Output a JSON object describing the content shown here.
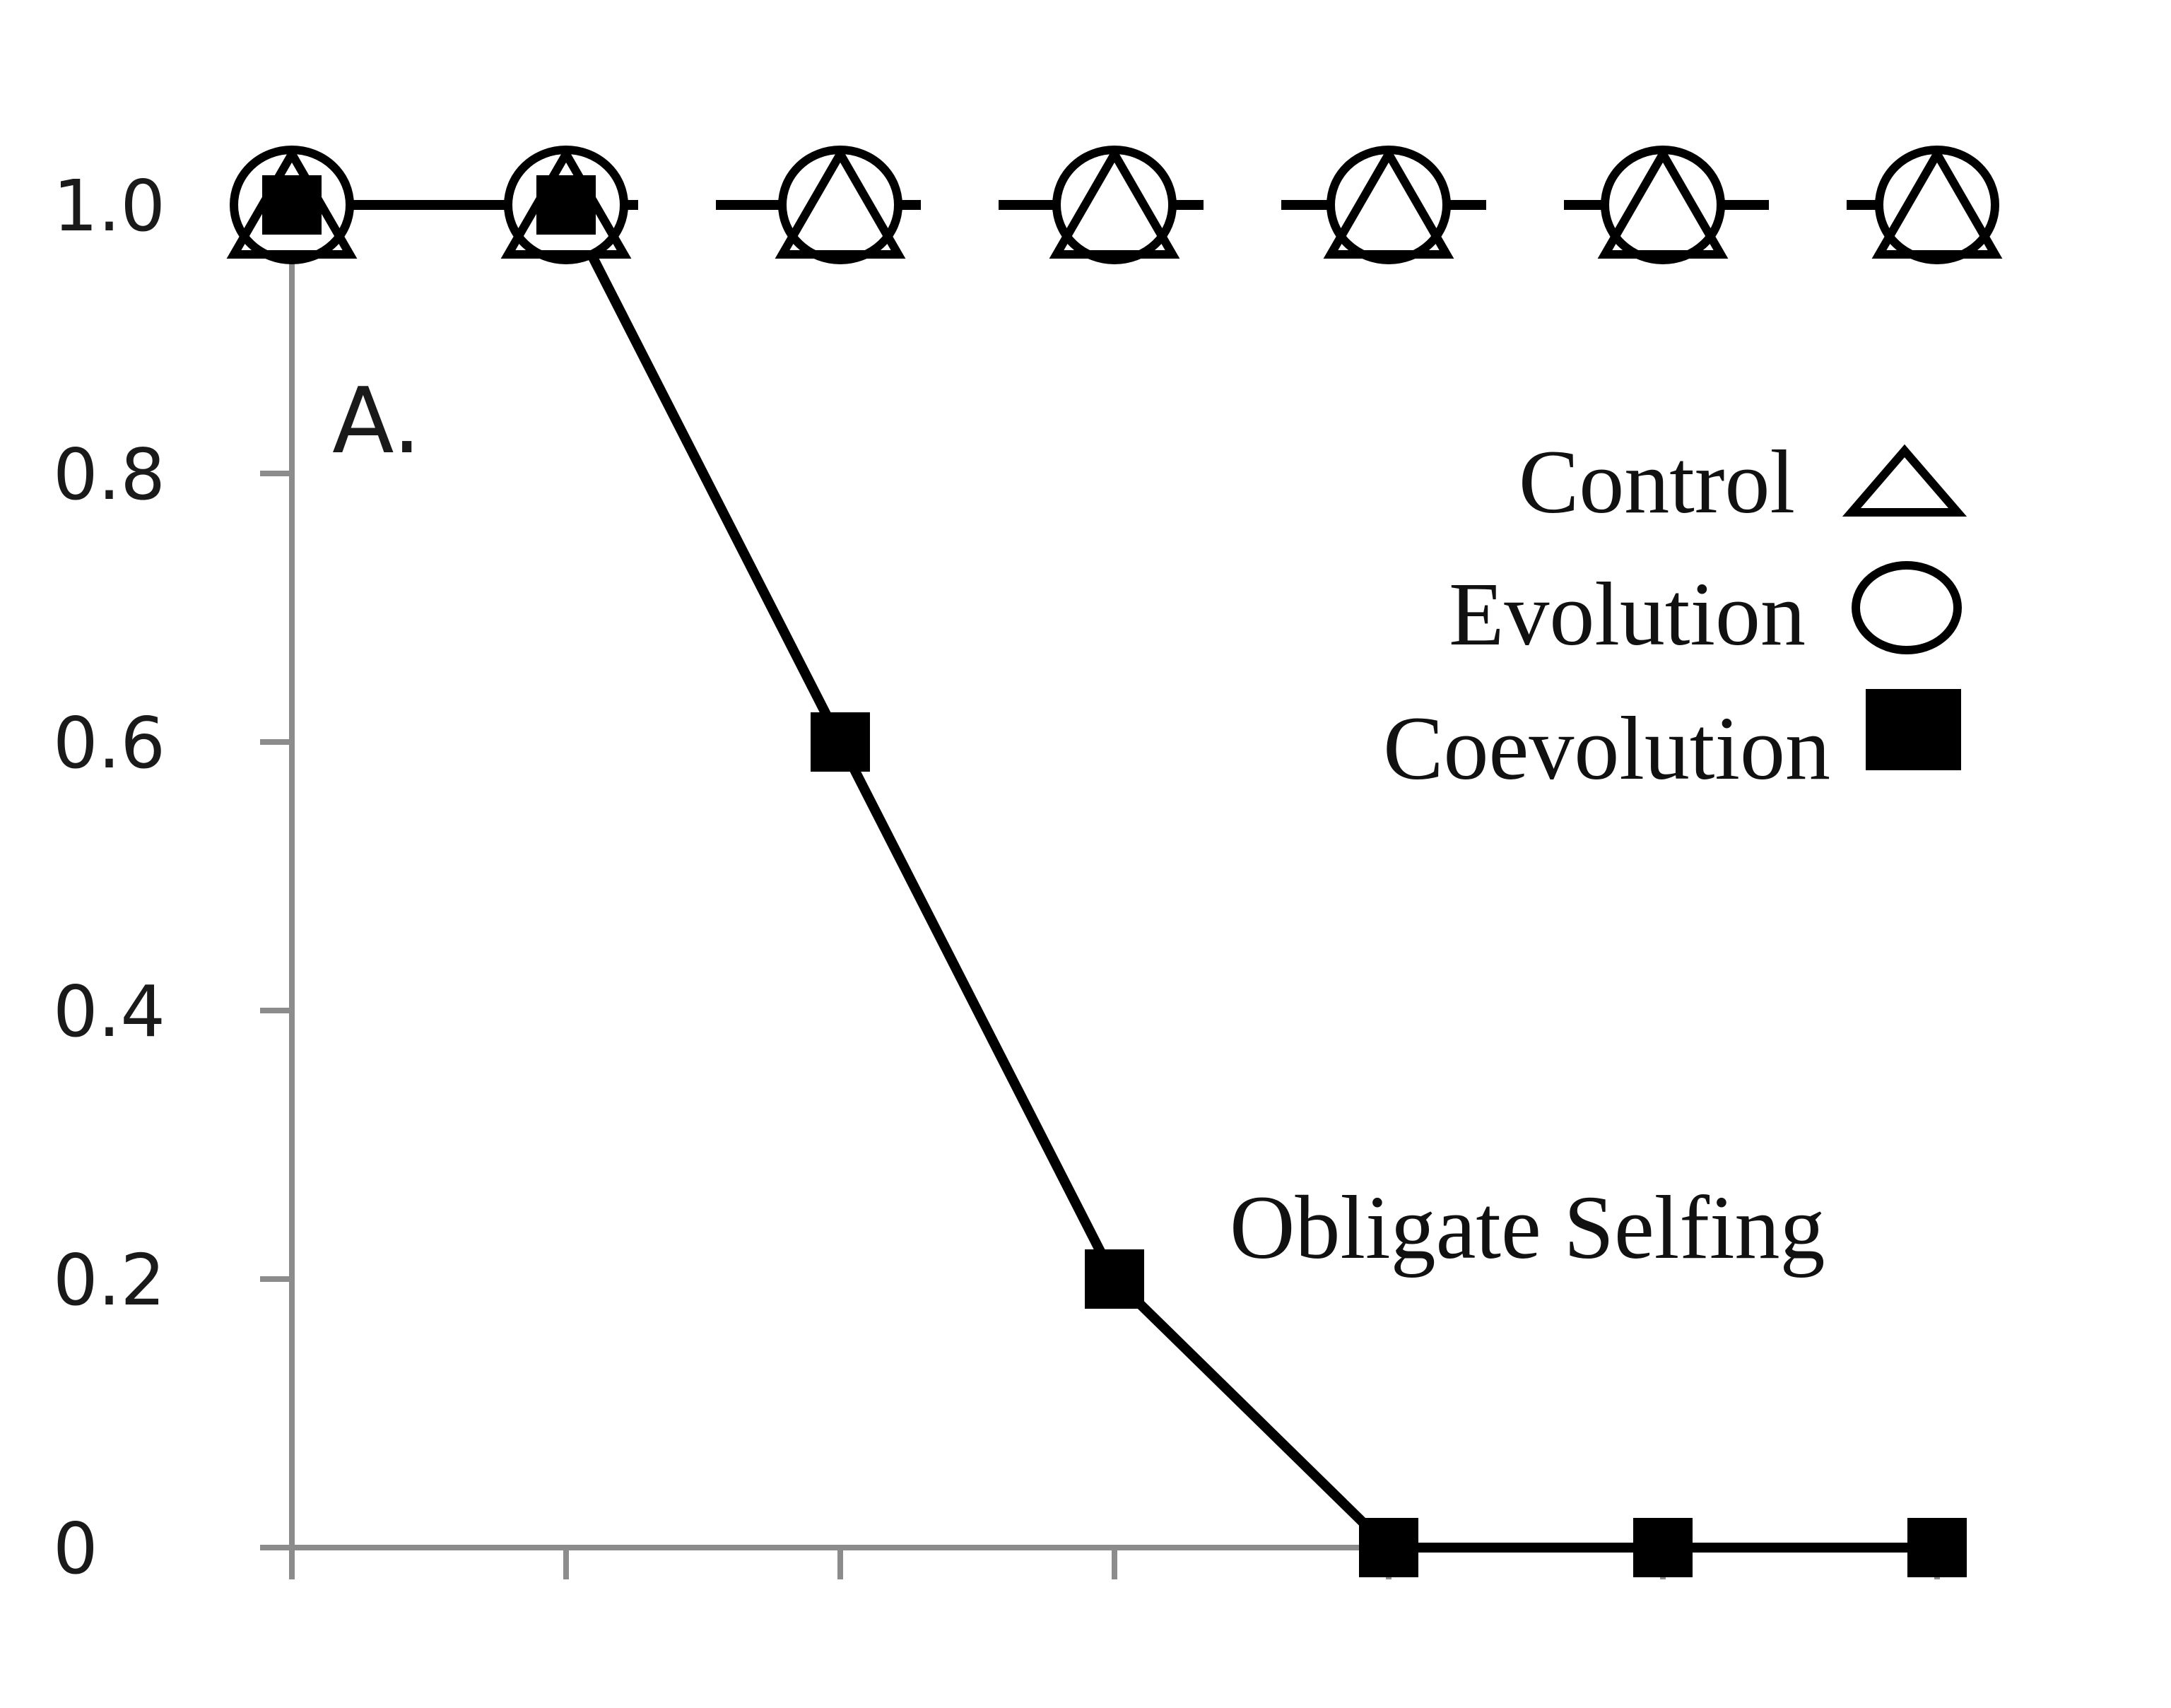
{
  "chart_data": {
    "type": "line",
    "panel_label": "A.",
    "annotation": "Obligate Selfing",
    "x": [
      1,
      2,
      3,
      4,
      5,
      6,
      7
    ],
    "ylim": [
      0,
      1.0
    ],
    "y_ticks": [
      {
        "value": 0,
        "label": "0"
      },
      {
        "value": 0.2,
        "label": "0.2"
      },
      {
        "value": 0.4,
        "label": "0.4"
      },
      {
        "value": 0.6,
        "label": "0.6"
      },
      {
        "value": 0.8,
        "label": "0.8"
      },
      {
        "value": 1.0,
        "label": "1.0"
      }
    ],
    "x_tick_labels_shown": false,
    "grid": false,
    "legend": {
      "placement": "top-right",
      "entries": [
        "Control",
        "Evolution",
        "Coevolution"
      ]
    },
    "series": [
      {
        "name": "Control",
        "marker": "triangle-open",
        "line": "dashed",
        "values": [
          1.0,
          1.0,
          1.0,
          1.0,
          1.0,
          1.0,
          1.0
        ]
      },
      {
        "name": "Evolution",
        "marker": "circle-open",
        "line": "dashed",
        "values": [
          1.0,
          1.0,
          1.0,
          1.0,
          1.0,
          1.0,
          1.0
        ]
      },
      {
        "name": "Coevolution",
        "marker": "square-filled",
        "line": "solid",
        "values": [
          1.0,
          1.0,
          0.6,
          0.2,
          0.0,
          0.0,
          0.0
        ]
      }
    ],
    "colors": {
      "axis": "#8c8c8c",
      "line": "#000000",
      "marker_fill": "#ffffff"
    }
  }
}
